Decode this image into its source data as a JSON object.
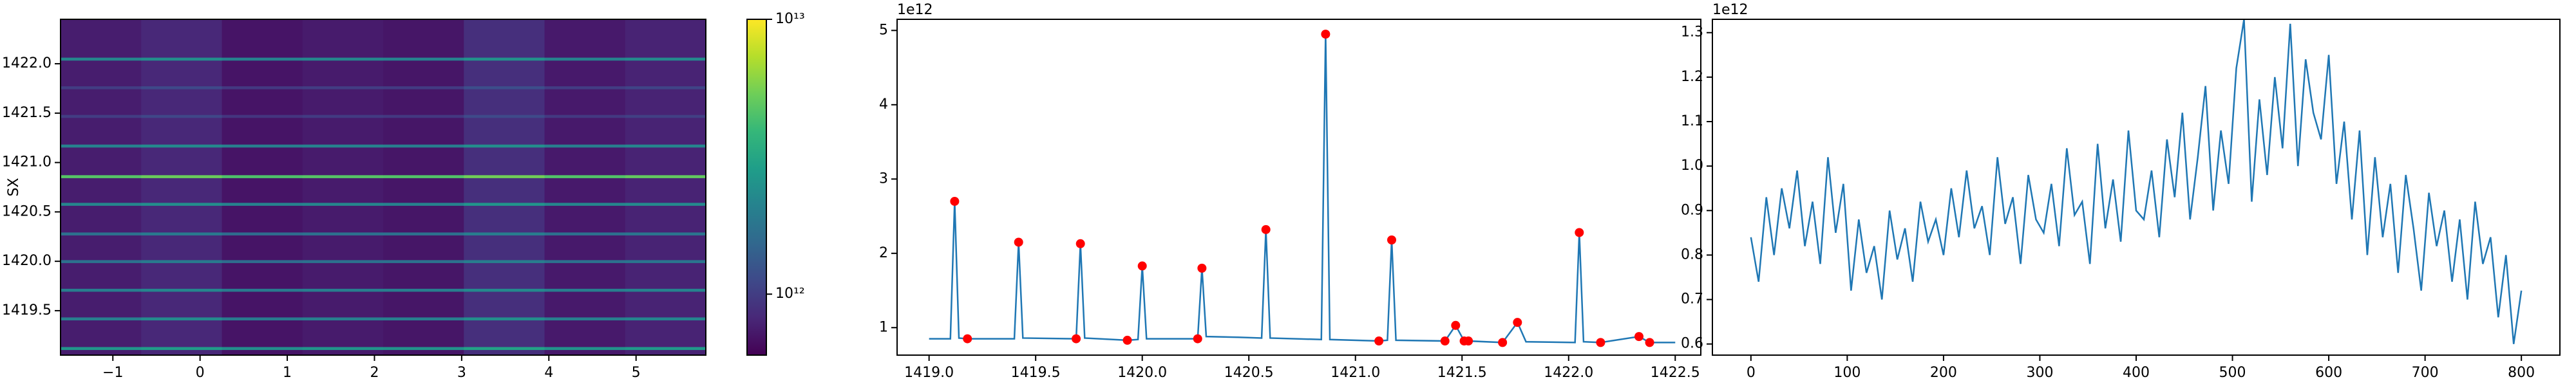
{
  "chart_data": [
    {
      "type": "heatmap",
      "ylabel": "SX",
      "colormap": "viridis",
      "zscale": "log",
      "xlim": [
        -1.6,
        5.8
      ],
      "ylim": [
        1419.05,
        1422.45
      ],
      "xticks": [
        {
          "value": -1,
          "label": "−1"
        },
        0,
        1,
        2,
        3,
        4,
        5
      ],
      "yticks": [
        1419.5,
        {
          "value": 1420,
          "label": "1420.0"
        },
        1420.5,
        {
          "value": 1421,
          "label": "1421.0"
        },
        1421.5,
        {
          "value": 1422,
          "label": "1422.0"
        }
      ],
      "zlim": [
        600000000000.0,
        10000000000000.0
      ],
      "zticks": [
        {
          "value": 1000000000000.0,
          "label": "10¹²"
        },
        {
          "value": 10000000000000.0,
          "label": "10¹³"
        }
      ],
      "x_edges": [
        -1.6,
        -0.675,
        0.25,
        1.175,
        2.1,
        3.025,
        3.95,
        4.875,
        5.8
      ],
      "y_edges": [
        1419.05,
        1419.105,
        1419.135,
        1419.405,
        1419.435,
        1419.695,
        1419.725,
        1419.985,
        1420.015,
        1420.265,
        1420.295,
        1420.565,
        1420.595,
        1420.845,
        1420.875,
        1421.155,
        1421.185,
        1421.455,
        1421.485,
        1421.745,
        1421.775,
        1422.035,
        1422.065,
        1422.45
      ],
      "z": [
        [
          750000000000.0,
          820000000000.0,
          700000000000.0,
          740000000000.0,
          710000000000.0,
          880000000000.0,
          730000000000.0,
          790000000000.0
        ],
        [
          2600000000000.0,
          2800000000000.0,
          2400000000000.0,
          2600000000000.0,
          2500000000000.0,
          3000000000000.0,
          2500000000000.0,
          2700000000000.0
        ],
        [
          750000000000.0,
          820000000000.0,
          700000000000.0,
          740000000000.0,
          710000000000.0,
          880000000000.0,
          730000000000.0,
          790000000000.0
        ],
        [
          2000000000000.0,
          2300000000000.0,
          1900000000000.0,
          2000000000000.0,
          2000000000000.0,
          2400000000000.0,
          2000000000000.0,
          2150000000000.0
        ],
        [
          750000000000.0,
          820000000000.0,
          700000000000.0,
          740000000000.0,
          710000000000.0,
          880000000000.0,
          730000000000.0,
          790000000000.0
        ],
        [
          2000000000000.0,
          2200000000000.0,
          1900000000000.0,
          2000000000000.0,
          2000000000000.0,
          2300000000000.0,
          2000000000000.0,
          2100000000000.0
        ],
        [
          750000000000.0,
          820000000000.0,
          700000000000.0,
          740000000000.0,
          710000000000.0,
          880000000000.0,
          730000000000.0,
          790000000000.0
        ],
        [
          1700000000000.0,
          1900000000000.0,
          1600000000000.0,
          1700000000000.0,
          1700000000000.0,
          2000000000000.0,
          1700000000000.0,
          1800000000000.0
        ],
        [
          750000000000.0,
          820000000000.0,
          700000000000.0,
          740000000000.0,
          710000000000.0,
          880000000000.0,
          730000000000.0,
          790000000000.0
        ],
        [
          1700000000000.0,
          1900000000000.0,
          1600000000000.0,
          1700000000000.0,
          1700000000000.0,
          2000000000000.0,
          1700000000000.0,
          1800000000000.0
        ],
        [
          750000000000.0,
          820000000000.0,
          700000000000.0,
          740000000000.0,
          710000000000.0,
          880000000000.0,
          730000000000.0,
          790000000000.0
        ],
        [
          2200000000000.0,
          2400000000000.0,
          2100000000000.0,
          2200000000000.0,
          2100000000000.0,
          2600000000000.0,
          2200000000000.0,
          2300000000000.0
        ],
        [
          750000000000.0,
          820000000000.0,
          700000000000.0,
          740000000000.0,
          710000000000.0,
          880000000000.0,
          730000000000.0,
          790000000000.0
        ],
        [
          4700000000000.0,
          5200000000000.0,
          4500000000000.0,
          4700000000000.0,
          4600000000000.0,
          5400000000000.0,
          4600000000000.0,
          5000000000000.0
        ],
        [
          750000000000.0,
          820000000000.0,
          700000000000.0,
          740000000000.0,
          710000000000.0,
          880000000000.0,
          730000000000.0,
          790000000000.0
        ],
        [
          2100000000000.0,
          2300000000000.0,
          2000000000000.0,
          2100000000000.0,
          2000000000000.0,
          2400000000000.0,
          2000000000000.0,
          2200000000000.0
        ],
        [
          750000000000.0,
          820000000000.0,
          700000000000.0,
          740000000000.0,
          710000000000.0,
          880000000000.0,
          730000000000.0,
          790000000000.0
        ],
        [
          1000000000000.0,
          1100000000000.0,
          930000000000.0,
          980000000000.0,
          950000000000.0,
          1130000000000.0,
          960000000000.0,
          1030000000000.0
        ],
        [
          750000000000.0,
          820000000000.0,
          700000000000.0,
          740000000000.0,
          710000000000.0,
          880000000000.0,
          730000000000.0,
          790000000000.0
        ],
        [
          1000000000000.0,
          1120000000000.0,
          960000000000.0,
          1000000000000.0,
          980000000000.0,
          1180000000000.0,
          1000000000000.0,
          1070000000000.0
        ],
        [
          750000000000.0,
          820000000000.0,
          700000000000.0,
          740000000000.0,
          710000000000.0,
          880000000000.0,
          730000000000.0,
          790000000000.0
        ],
        [
          2200000000000.0,
          2400000000000.0,
          2100000000000.0,
          2200000000000.0,
          2100000000000.0,
          2500000000000.0,
          2100000000000.0,
          2300000000000.0
        ],
        [
          750000000000.0,
          820000000000.0,
          700000000000.0,
          740000000000.0,
          710000000000.0,
          880000000000.0,
          730000000000.0,
          790000000000.0
        ]
      ]
    },
    {
      "type": "line",
      "offset_text": "1e12",
      "xlim": [
        1418.85,
        1422.62
      ],
      "ylim": [
        0.63,
        5.15
      ],
      "xticks": [
        {
          "value": 1419,
          "label": "1419.0"
        },
        1419.5,
        {
          "value": 1420,
          "label": "1420.0"
        },
        1420.5,
        {
          "value": 1421,
          "label": "1421.0"
        },
        1421.5,
        {
          "value": 1422,
          "label": "1422.0"
        },
        1422.5
      ],
      "yticks": [
        1,
        2,
        3,
        4,
        5
      ],
      "x": [
        1419.0,
        1419.1,
        1419.12,
        1419.14,
        1419.18,
        1419.4,
        1419.42,
        1419.44,
        1419.69,
        1419.71,
        1419.73,
        1419.93,
        1419.98,
        1420.0,
        1420.02,
        1420.26,
        1420.28,
        1420.3,
        1420.45,
        1420.56,
        1420.58,
        1420.6,
        1420.84,
        1420.86,
        1420.88,
        1421.11,
        1421.15,
        1421.17,
        1421.19,
        1421.42,
        1421.47,
        1421.51,
        1421.53,
        1421.69,
        1421.76,
        1421.8,
        1422.03,
        1422.05,
        1422.07,
        1422.15,
        1422.33,
        1422.38,
        1422.5
      ],
      "series": [
        {
          "color": "#1f77b4",
          "values": [
            0.85,
            0.85,
            2.7,
            0.86,
            0.85,
            0.85,
            2.15,
            0.86,
            0.85,
            2.13,
            0.86,
            0.83,
            0.84,
            1.83,
            0.85,
            0.85,
            1.8,
            0.88,
            0.87,
            0.86,
            2.32,
            0.86,
            0.84,
            4.95,
            0.84,
            0.82,
            0.83,
            2.18,
            0.83,
            0.82,
            1.03,
            0.82,
            0.82,
            0.8,
            1.07,
            0.81,
            0.8,
            2.28,
            0.81,
            0.8,
            0.88,
            0.8,
            0.8
          ]
        }
      ],
      "markers": {
        "color": "red",
        "x": [
          1419.12,
          1419.18,
          1419.42,
          1419.69,
          1419.71,
          1419.93,
          1420.0,
          1420.26,
          1420.28,
          1420.58,
          1420.86,
          1421.11,
          1421.17,
          1421.42,
          1421.47,
          1421.51,
          1421.53,
          1421.69,
          1421.76,
          1422.05,
          1422.15,
          1422.33,
          1422.38
        ],
        "values": [
          2.7,
          0.85,
          2.15,
          0.85,
          2.13,
          0.83,
          1.83,
          0.85,
          1.8,
          2.32,
          4.95,
          0.82,
          2.18,
          0.82,
          1.03,
          0.82,
          0.82,
          0.8,
          1.07,
          2.28,
          0.8,
          0.88,
          0.8
        ]
      }
    },
    {
      "type": "line",
      "offset_text": "1e12",
      "xlim": [
        -40,
        840
      ],
      "ylim": [
        0.575,
        1.33
      ],
      "xticks": [
        0,
        100,
        200,
        300,
        400,
        500,
        600,
        700,
        800
      ],
      "yticks": [
        0.6,
        0.7,
        0.8,
        0.9,
        {
          "value": 1,
          "label": "1.0"
        },
        1.1,
        1.2,
        1.3
      ],
      "x": [
        0,
        8,
        16,
        24,
        32,
        40,
        48,
        56,
        64,
        72,
        80,
        88,
        96,
        104,
        112,
        120,
        128,
        136,
        144,
        152,
        160,
        168,
        176,
        184,
        192,
        200,
        208,
        216,
        224,
        232,
        240,
        248,
        256,
        264,
        272,
        280,
        288,
        296,
        304,
        312,
        320,
        328,
        336,
        344,
        352,
        360,
        368,
        376,
        384,
        392,
        400,
        408,
        416,
        424,
        432,
        440,
        448,
        456,
        464,
        472,
        480,
        488,
        496,
        504,
        512,
        520,
        528,
        536,
        544,
        552,
        560,
        568,
        576,
        584,
        592,
        600,
        608,
        616,
        624,
        632,
        640,
        648,
        656,
        664,
        672,
        680,
        688,
        696,
        704,
        712,
        720,
        728,
        736,
        744,
        752,
        760,
        768,
        776,
        784,
        792,
        800
      ],
      "series": [
        {
          "color": "#1f77b4",
          "values": [
            0.84,
            0.74,
            0.93,
            0.8,
            0.95,
            0.86,
            0.99,
            0.82,
            0.92,
            0.78,
            1.02,
            0.85,
            0.96,
            0.72,
            0.88,
            0.76,
            0.82,
            0.7,
            0.9,
            0.79,
            0.86,
            0.74,
            0.92,
            0.83,
            0.88,
            0.8,
            0.95,
            0.84,
            0.99,
            0.86,
            0.91,
            0.8,
            1.02,
            0.87,
            0.93,
            0.78,
            0.98,
            0.88,
            0.85,
            0.96,
            0.82,
            1.04,
            0.89,
            0.92,
            0.78,
            1.05,
            0.86,
            0.97,
            0.83,
            1.08,
            0.9,
            0.88,
            0.99,
            0.84,
            1.06,
            0.93,
            1.12,
            0.88,
            1.02,
            1.18,
            0.9,
            1.08,
            0.96,
            1.22,
            1.33,
            0.92,
            1.15,
            0.98,
            1.2,
            1.04,
            1.32,
            1.0,
            1.24,
            1.12,
            1.06,
            1.25,
            0.96,
            1.1,
            0.88,
            1.08,
            0.8,
            1.02,
            0.84,
            0.96,
            0.76,
            0.98,
            0.86,
            0.72,
            0.94,
            0.82,
            0.9,
            0.74,
            0.88,
            0.7,
            0.92,
            0.78,
            0.84,
            0.66,
            0.8,
            0.6,
            0.72
          ]
        }
      ]
    }
  ]
}
